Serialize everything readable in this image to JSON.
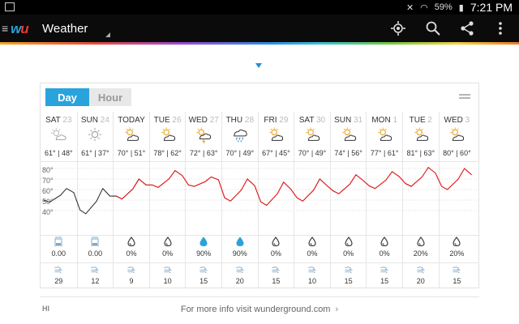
{
  "status_bar": {
    "battery": "59%",
    "time": "7:21 PM"
  },
  "app_bar": {
    "logo": "wu",
    "title": "Weather",
    "icons": [
      "location-target-icon",
      "search-icon",
      "share-icon",
      "overflow-menu-icon"
    ]
  },
  "colors": {
    "accent": "#2aa3dd",
    "forecast_line": "#e02020",
    "history_line": "#222222",
    "precip_drop": "#2aa3dd"
  },
  "toggle": {
    "day": "Day",
    "hour": "Hour",
    "selected": "Day"
  },
  "chart_y_labels": [
    "80°",
    "70°",
    "60°",
    "50°",
    "40°"
  ],
  "days": [
    {
      "name": "SAT",
      "num": "23",
      "icon": "partly-sunny",
      "temps": "61° | 48°",
      "precip_icon": "rain-gauge",
      "precip": "0.00",
      "wind": "29"
    },
    {
      "name": "SUN",
      "num": "24",
      "icon": "sunny",
      "temps": "61° | 37°",
      "precip_icon": "rain-gauge",
      "precip": "0.00",
      "wind": "12"
    },
    {
      "name": "TODAY",
      "num": "",
      "icon": "partly-cloudy",
      "temps": "70° | 51°",
      "precip_icon": "drop-outline",
      "precip": "0%",
      "wind": "9"
    },
    {
      "name": "TUE",
      "num": "26",
      "icon": "partly-cloudy",
      "temps": "78° | 62°",
      "precip_icon": "drop-outline",
      "precip": "0%",
      "wind": "10"
    },
    {
      "name": "WED",
      "num": "27",
      "icon": "chance-storm",
      "temps": "72° | 63°",
      "precip_icon": "drop-filled",
      "precip": "90%",
      "wind": "15"
    },
    {
      "name": "THU",
      "num": "28",
      "icon": "rain",
      "temps": "70° | 49°",
      "precip_icon": "drop-filled",
      "precip": "90%",
      "wind": "20"
    },
    {
      "name": "FRI",
      "num": "29",
      "icon": "partly-cloudy",
      "temps": "67° | 45°",
      "precip_icon": "drop-outline",
      "precip": "0%",
      "wind": "15"
    },
    {
      "name": "SAT",
      "num": "30",
      "icon": "partly-cloudy",
      "temps": "70° | 49°",
      "precip_icon": "drop-outline",
      "precip": "0%",
      "wind": "10"
    },
    {
      "name": "SUN",
      "num": "31",
      "icon": "partly-cloudy",
      "temps": "74° | 56°",
      "precip_icon": "drop-outline",
      "precip": "0%",
      "wind": "15"
    },
    {
      "name": "MON",
      "num": "1",
      "icon": "partly-cloudy",
      "temps": "77° | 61°",
      "precip_icon": "drop-outline",
      "precip": "0%",
      "wind": "15"
    },
    {
      "name": "TUE",
      "num": "2",
      "icon": "partly-cloudy",
      "temps": "81° | 63°",
      "precip_icon": "drop-outline",
      "precip": "20%",
      "wind": "20"
    },
    {
      "name": "WED",
      "num": "3",
      "icon": "partly-cloudy",
      "temps": "80° | 60°",
      "precip_icon": "drop-outline",
      "precip": "20%",
      "wind": "15"
    }
  ],
  "wind_row_label": "HI",
  "footer": {
    "text": "For more info visit wunderground.com",
    "chevron": "›"
  }
}
